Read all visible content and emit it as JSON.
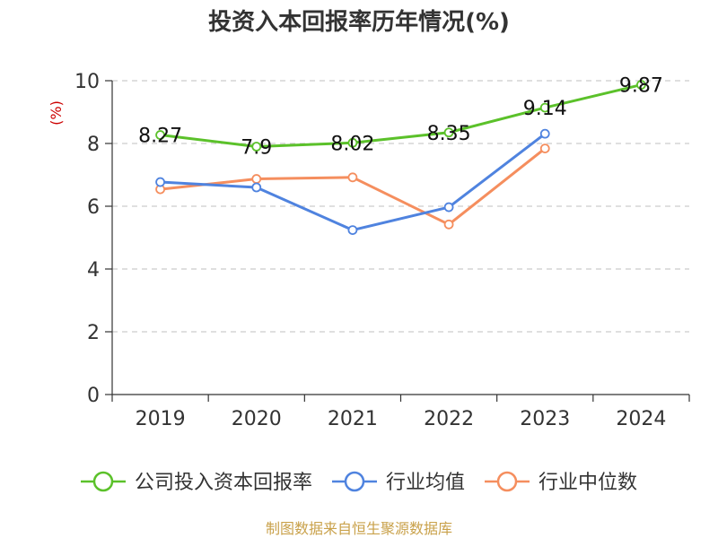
{
  "chart_data": {
    "type": "line",
    "title": "投资入本回报率历年情况(%)",
    "unit_label": "(%)",
    "categories": [
      "2019",
      "2020",
      "2021",
      "2022",
      "2023",
      "2024"
    ],
    "ylim": [
      0,
      10
    ],
    "yticks": [
      0,
      2,
      4,
      6,
      8,
      10
    ],
    "grid": true,
    "series": [
      {
        "name": "公司投入资本回报率",
        "color": "#5bc12a",
        "values": [
          8.27,
          7.9,
          8.02,
          8.35,
          9.14,
          9.87
        ],
        "labels": [
          "8.27",
          "7.9",
          "8.02",
          "8.35",
          "9.14",
          "9.87"
        ]
      },
      {
        "name": "行业均值",
        "color": "#4f83df",
        "values": [
          6.77,
          6.6,
          5.24,
          5.97,
          8.31,
          null
        ]
      },
      {
        "name": "行业中位数",
        "color": "#f58e5e",
        "values": [
          6.54,
          6.87,
          6.92,
          5.42,
          7.84,
          null
        ]
      }
    ],
    "legend_position": "bottom",
    "source": "制图数据来自恒生聚源数据库"
  }
}
